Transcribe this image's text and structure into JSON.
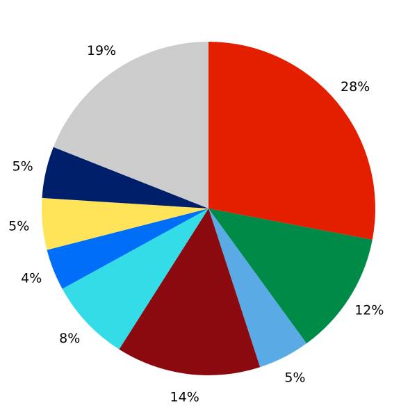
{
  "chart_data": {
    "type": "pie",
    "start": "top",
    "direction": "clockwise",
    "slices": [
      {
        "label": "28%",
        "value": 28,
        "color": "#e41f00"
      },
      {
        "label": "12%",
        "value": 12,
        "color": "#008a47"
      },
      {
        "label": "5%",
        "value": 5,
        "color": "#5aaae6"
      },
      {
        "label": "14%",
        "value": 14,
        "color": "#8b0a10"
      },
      {
        "label": "8%",
        "value": 8,
        "color": "#33dce6"
      },
      {
        "label": "4%",
        "value": 4,
        "color": "#006ef7"
      },
      {
        "label": "5%",
        "value": 5,
        "color": "#ffe45a"
      },
      {
        "label": "5%",
        "value": 5,
        "color": "#001f6b"
      },
      {
        "label": "19%",
        "value": 19,
        "color": "#cccccc"
      }
    ]
  }
}
